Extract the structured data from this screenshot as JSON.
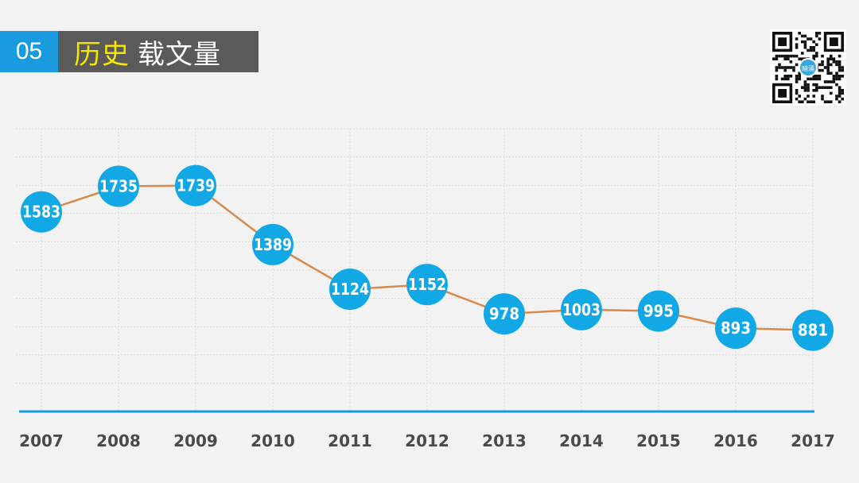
{
  "header": {
    "number": "05",
    "title_highlight": "历史",
    "title_rest": "载文量"
  },
  "qr_code": {
    "icon": "qr-code-icon",
    "center_text": "暗涌"
  },
  "colors": {
    "accent": "#1a9be0",
    "line": "#d98a4a",
    "marker": "#12a8e6",
    "header_bg": "#5a5a5a",
    "highlight": "#f5e600"
  },
  "chart_data": {
    "type": "line",
    "categories": [
      "2007",
      "2008",
      "2009",
      "2010",
      "2011",
      "2012",
      "2013",
      "2014",
      "2015",
      "2016",
      "2017"
    ],
    "series": [
      {
        "values": [
          1583,
          1735,
          1739,
          1389,
          1124,
          1152,
          978,
          1003,
          995,
          893,
          881
        ]
      }
    ],
    "data_labels": true,
    "grid": true,
    "legend": "none"
  }
}
